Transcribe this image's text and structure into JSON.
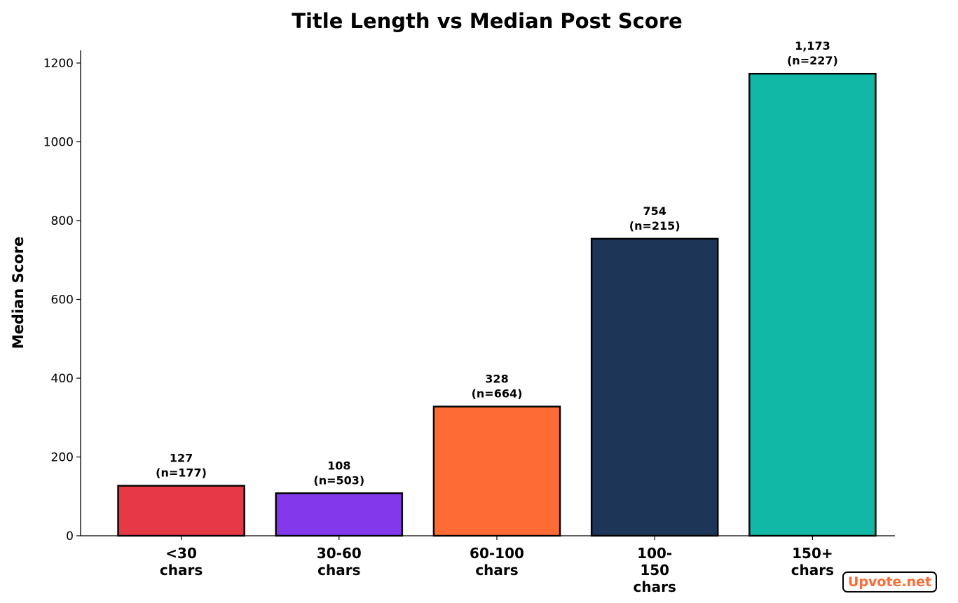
{
  "chart_data": {
    "type": "bar",
    "title": "Title Length vs Median Post Score",
    "y_label": "Median Score",
    "categories": [
      "<30 chars",
      "30-60 chars",
      "60-100 chars",
      "100-150 chars",
      "150+ chars"
    ],
    "values": [
      127,
      108,
      328,
      754,
      1173
    ],
    "value_labels": [
      "127",
      "108",
      "328",
      "754",
      "1,173"
    ],
    "sample_size_labels": [
      "(n=177)",
      "(n=503)",
      "(n=664)",
      "(n=215)",
      "(n=227)"
    ],
    "colors": [
      "#e63946",
      "#8338ec",
      "#ff6b35",
      "#1d3557",
      "#12b8a6"
    ],
    "ylim": [
      0,
      1232
    ],
    "yticks": [
      0,
      200,
      400,
      600,
      800,
      1000,
      1200
    ],
    "grid": false,
    "watermark": "Upvote.net"
  }
}
